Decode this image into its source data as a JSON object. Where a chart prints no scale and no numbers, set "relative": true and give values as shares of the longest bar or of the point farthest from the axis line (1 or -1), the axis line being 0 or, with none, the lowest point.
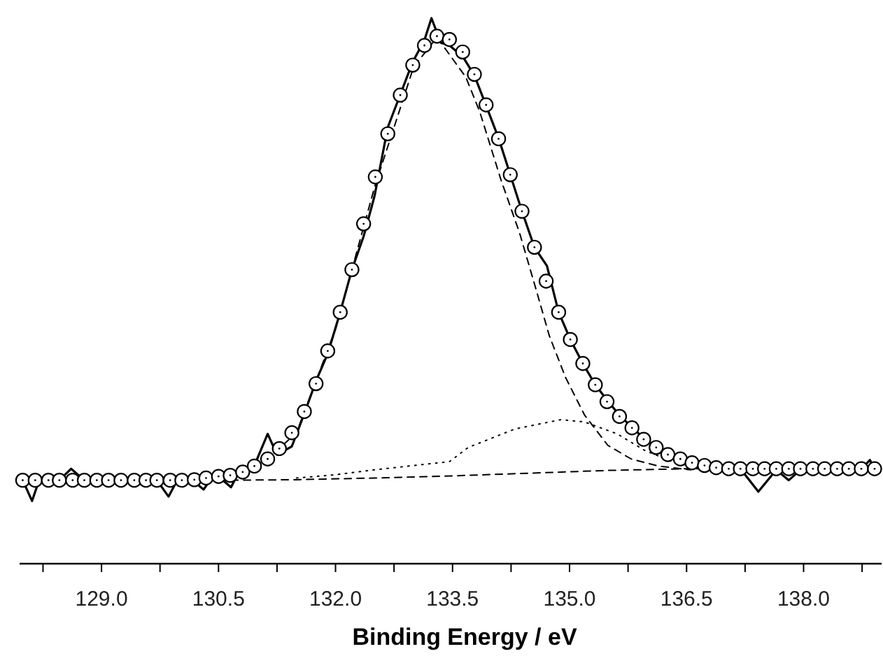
{
  "chart_data": {
    "type": "line",
    "xlabel": "Binding Energy / eV",
    "relative": true,
    "tick_labels": "x",
    "grid": false,
    "xlim": [
      127.95,
      139
    ],
    "xticks": [
      {
        "value": 128.25,
        "label": null
      },
      {
        "value": 129,
        "label": "129.0"
      },
      {
        "value": 129.75,
        "label": null
      },
      130.5,
      {
        "value": 131.25,
        "label": null
      },
      {
        "value": 132,
        "label": "132.0"
      },
      {
        "value": 132.75,
        "label": null
      },
      133.5,
      {
        "value": 134.25,
        "label": null
      },
      {
        "value": 135,
        "label": "135.0"
      },
      {
        "value": 135.75,
        "label": null
      },
      136.5,
      {
        "value": 137.25,
        "label": null
      },
      {
        "value": 138,
        "label": "138.0"
      },
      {
        "value": 138.75,
        "label": null
      }
    ],
    "series": [
      {
        "type": "line",
        "line_style": "dashed",
        "color": "#000000",
        "x": [
          130.66,
          131.5,
          132.5,
          133.5,
          134.5,
          135.5,
          136.5,
          137.0
        ],
        "values": [
          0.153,
          0.154,
          0.157,
          0.161,
          0.166,
          0.171,
          0.174,
          0.174
        ]
      },
      {
        "type": "line",
        "line_style": "dotted",
        "color": "#000000",
        "x": [
          131.5,
          132.0,
          132.5,
          133.0,
          133.46,
          133.7,
          134.3,
          134.89,
          135.19,
          135.61,
          135.96,
          136.38,
          136.8
        ],
        "values": [
          0.157,
          0.163,
          0.172,
          0.18,
          0.187,
          0.213,
          0.247,
          0.264,
          0.26,
          0.238,
          0.208,
          0.183,
          0.174
        ]
      },
      {
        "type": "line",
        "line_style": "dashed",
        "color": "#000000",
        "x": [
          130.5,
          131.0,
          131.5,
          132.0,
          132.5,
          133.0,
          133.3,
          133.67,
          133.85,
          134.12,
          134.36,
          134.57,
          134.74,
          134.95,
          135.19,
          135.49,
          135.79,
          136.14,
          136.55
        ],
        "values": [
          0.155,
          0.175,
          0.24,
          0.43,
          0.69,
          0.91,
          0.965,
          0.892,
          0.828,
          0.704,
          0.606,
          0.503,
          0.418,
          0.341,
          0.273,
          0.217,
          0.192,
          0.179,
          0.172
        ]
      },
      {
        "type": "line",
        "line_style": "solid",
        "color": "#000000",
        "x": [
          127.99,
          128.11,
          128.2,
          128.46,
          128.61,
          128.78,
          129.71,
          129.86,
          129.97,
          130.19,
          130.31,
          130.4,
          130.5,
          130.66,
          130.75,
          130.96,
          131.13,
          131.25,
          131.44,
          131.6,
          131.75,
          131.9,
          132.06,
          132.21,
          132.36,
          132.5,
          132.67,
          132.83,
          132.99,
          133.14,
          133.23,
          133.35,
          133.46,
          133.63,
          133.78,
          133.93,
          134.09,
          134.24,
          134.39,
          134.55,
          134.71,
          134.86,
          135.01,
          135.17,
          135.33,
          135.48,
          135.64,
          135.95,
          136.26,
          136.57,
          136.88,
          137.19,
          137.42,
          137.65,
          137.81,
          137.96,
          138.74,
          138.85,
          138.91
        ],
        "values": [
          0.153,
          0.115,
          0.153,
          0.153,
          0.174,
          0.153,
          0.153,
          0.123,
          0.153,
          0.15,
          0.136,
          0.155,
          0.16,
          0.14,
          0.165,
          0.18,
          0.238,
          0.2,
          0.215,
          0.275,
          0.335,
          0.385,
          0.461,
          0.539,
          0.6,
          0.674,
          0.8,
          0.86,
          0.92,
          0.96,
          1.0,
          0.955,
          0.95,
          0.93,
          0.895,
          0.84,
          0.78,
          0.713,
          0.646,
          0.58,
          0.546,
          0.461,
          0.411,
          0.367,
          0.328,
          0.3,
          0.272,
          0.23,
          0.2,
          0.185,
          0.176,
          0.174,
          0.132,
          0.172,
          0.153,
          0.172,
          0.174,
          0.19,
          0.174
        ]
      },
      {
        "type": "scatter",
        "marker": "circle",
        "color": "#000000",
        "x": [
          127.99,
          128.15,
          128.32,
          128.46,
          128.63,
          128.78,
          128.94,
          129.09,
          129.25,
          129.42,
          129.57,
          129.71,
          129.88,
          130.03,
          130.19,
          130.34,
          130.5,
          130.65,
          130.81,
          130.96,
          131.13,
          131.28,
          131.44,
          131.6,
          131.75,
          131.9,
          132.06,
          132.21,
          132.36,
          132.51,
          132.67,
          132.83,
          132.99,
          133.14,
          133.3,
          133.46,
          133.63,
          133.78,
          133.93,
          134.09,
          134.24,
          134.39,
          134.55,
          134.7,
          134.86,
          135.01,
          135.17,
          135.33,
          135.48,
          135.64,
          135.8,
          135.95,
          136.11,
          136.26,
          136.42,
          136.57,
          136.73,
          136.88,
          137.04,
          137.19,
          137.35,
          137.5,
          137.65,
          137.81,
          137.96,
          138.12,
          138.27,
          138.43,
          138.58,
          138.74,
          138.91
        ],
        "values": [
          0.153,
          0.153,
          0.153,
          0.153,
          0.153,
          0.153,
          0.153,
          0.153,
          0.153,
          0.153,
          0.153,
          0.153,
          0.153,
          0.153,
          0.154,
          0.157,
          0.16,
          0.162,
          0.168,
          0.179,
          0.192,
          0.211,
          0.24,
          0.279,
          0.33,
          0.39,
          0.461,
          0.539,
          0.623,
          0.709,
          0.788,
          0.859,
          0.914,
          0.95,
          0.967,
          0.961,
          0.938,
          0.897,
          0.841,
          0.779,
          0.713,
          0.646,
          0.58,
          0.518,
          0.461,
          0.411,
          0.367,
          0.328,
          0.297,
          0.27,
          0.249,
          0.228,
          0.213,
          0.2,
          0.192,
          0.185,
          0.18,
          0.176,
          0.174,
          0.174,
          0.174,
          0.174,
          0.174,
          0.174,
          0.174,
          0.174,
          0.174,
          0.174,
          0.174,
          0.174,
          0.174
        ]
      }
    ]
  }
}
